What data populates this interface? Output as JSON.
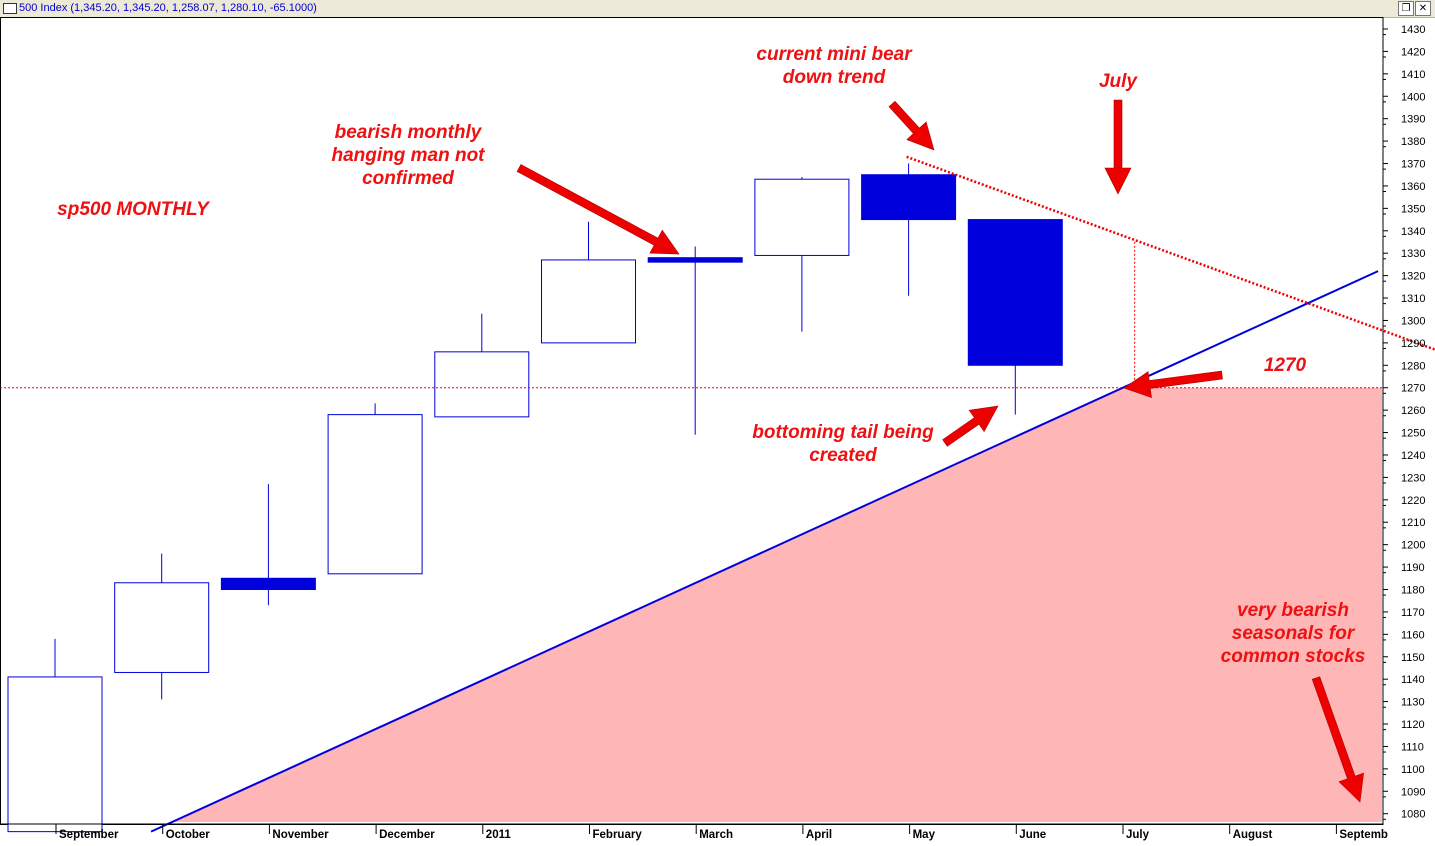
{
  "window": {
    "title": "500 Index (1,345.20, 1,345.20, 1,258.07, 1,280.10, -65.1000)",
    "restore_icon": "restore-window-icon",
    "close_icon": "close-icon"
  },
  "chart_data": {
    "type": "candlestick",
    "title": "sp500 MONTHLY",
    "ylim": [
      1072,
      1438
    ],
    "y_ticks": [
      1080,
      1090,
      1100,
      1110,
      1120,
      1130,
      1140,
      1150,
      1160,
      1170,
      1180,
      1190,
      1200,
      1210,
      1220,
      1230,
      1240,
      1250,
      1260,
      1270,
      1280,
      1290,
      1300,
      1310,
      1320,
      1330,
      1340,
      1350,
      1360,
      1370,
      1380,
      1390,
      1400,
      1410,
      1420,
      1430
    ],
    "x_labels": [
      "September",
      "October",
      "November",
      "December",
      "2011",
      "February",
      "March",
      "April",
      "May",
      "June",
      "July",
      "August",
      "Septemb"
    ],
    "candles": [
      {
        "month": "September",
        "open": 1072,
        "high": 1158,
        "low": 1072,
        "close": 1141
      },
      {
        "month": "October",
        "open": 1143,
        "high": 1196,
        "low": 1131,
        "close": 1183
      },
      {
        "month": "November",
        "open": 1185,
        "high": 1227,
        "low": 1173,
        "close": 1180
      },
      {
        "month": "December",
        "open": 1187,
        "high": 1263,
        "low": 1187,
        "close": 1258
      },
      {
        "month": "2011",
        "open": 1257,
        "high": 1303,
        "low": 1257,
        "close": 1286
      },
      {
        "month": "February",
        "open": 1290,
        "high": 1344,
        "low": 1290,
        "close": 1327
      },
      {
        "month": "March",
        "open": 1328,
        "high": 1333,
        "low": 1249,
        "close": 1326
      },
      {
        "month": "April",
        "open": 1329,
        "high": 1364,
        "low": 1295,
        "close": 1363
      },
      {
        "month": "May",
        "open": 1365,
        "high": 1370,
        "low": 1311,
        "close": 1345
      },
      {
        "month": "June",
        "open": 1345,
        "high": 1345,
        "low": 1258,
        "close": 1280
      }
    ],
    "lines": [
      {
        "name": "uptrend",
        "style": "solid",
        "color": "#0000dd",
        "from": {
          "x_index": 0.9,
          "y": 1072
        },
        "to": {
          "x_index": 12.4,
          "y": 1322
        }
      },
      {
        "name": "downtrend",
        "style": "dotted",
        "color": "#ee0000",
        "from": {
          "x_index": 8.0,
          "y": 1373
        },
        "to": {
          "x_index": 13.0,
          "y": 1283
        }
      },
      {
        "name": "support-1270",
        "style": "dotted",
        "color": "#ee0000",
        "y": 1270
      },
      {
        "name": "july-marker",
        "style": "dotted",
        "color": "#ee0000",
        "x_index": 10.1,
        "y_from": 1270,
        "y_to": 1336
      }
    ],
    "shaded_region": {
      "color": "#ffb6b6",
      "bounded_by": [
        "uptrend",
        "support-1270"
      ]
    },
    "annotations": [
      {
        "id": "title",
        "lines": [
          "sp500 MONTHLY"
        ]
      },
      {
        "id": "hanging-man",
        "lines": [
          "bearish monthly",
          "hanging man not",
          "confirmed"
        ]
      },
      {
        "id": "mini-bear",
        "lines": [
          "current mini bear",
          "down trend"
        ]
      },
      {
        "id": "july",
        "lines": [
          "July"
        ]
      },
      {
        "id": "level",
        "lines": [
          "1270"
        ]
      },
      {
        "id": "bottoming-tail",
        "lines": [
          "bottoming tail being",
          "created"
        ]
      },
      {
        "id": "seasonals",
        "lines": [
          "very bearish",
          "seasonals for",
          "common stocks"
        ]
      }
    ],
    "colors": {
      "candle": "#0000dd",
      "annotation": "#ee1111",
      "arrow": "#ee0000",
      "shade": "#ffb6b6"
    }
  }
}
